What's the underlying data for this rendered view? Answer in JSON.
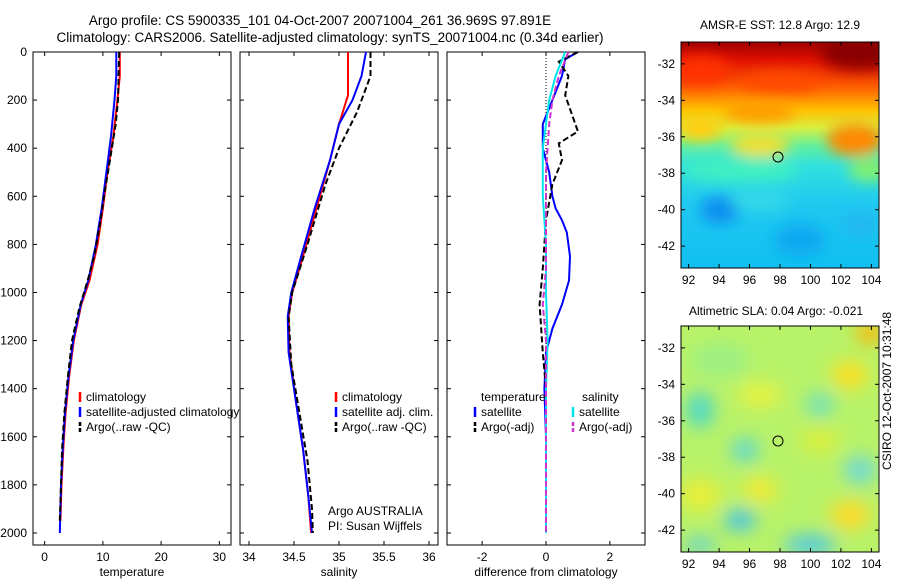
{
  "header": {
    "line1": "Argo profile: CS 5900335_101 04-Oct-2007 20071004_261 36.969S 97.891E",
    "line2": "Climatology: CARS2006. Satellite-adjusted climatology: synTS_20071004.nc (0.34d earlier)"
  },
  "colors": {
    "climatology": "#ff0000",
    "satellite": "#0000ff",
    "argo": "#000000",
    "satellite_salinity": "#00e5ee",
    "argo_salinity_adj": "#cc33cc"
  },
  "chart_data": [
    {
      "type": "line",
      "name": "temperature-profile",
      "xlabel": "temperature",
      "ylabel": "",
      "xlim": [
        -2,
        32
      ],
      "ylim": [
        2050,
        0
      ],
      "xticks": [
        0,
        10,
        20,
        30
      ],
      "yticks": [
        0,
        200,
        400,
        600,
        800,
        1000,
        1200,
        1400,
        1600,
        1800,
        2000
      ],
      "legend": [
        {
          "name": "climatology",
          "color": "#ff0000",
          "dash": "solid"
        },
        {
          "name": "satellite-adjusted climatology",
          "color": "#0000ff",
          "dash": "solid"
        },
        {
          "name": "Argo(..raw -QC)",
          "color": "#000000",
          "dash": "dashed"
        }
      ],
      "series": [
        {
          "name": "climatology",
          "color": "#ff0000",
          "dash": "solid",
          "points": [
            [
              12.9,
              0
            ],
            [
              12.9,
              100
            ],
            [
              12.5,
              200
            ],
            [
              11.8,
              350
            ],
            [
              10.8,
              500
            ],
            [
              10.0,
              650
            ],
            [
              9.1,
              800
            ],
            [
              7.7,
              950
            ],
            [
              6.3,
              1050
            ],
            [
              5.0,
              1200
            ],
            [
              4.2,
              1350
            ],
            [
              3.6,
              1500
            ],
            [
              3.2,
              1650
            ],
            [
              2.9,
              1800
            ],
            [
              2.7,
              1950
            ]
          ]
        },
        {
          "name": "satellite-adjusted climatology",
          "color": "#0000ff",
          "dash": "solid",
          "points": [
            [
              12.3,
              0
            ],
            [
              12.3,
              100
            ],
            [
              12.0,
              200
            ],
            [
              11.4,
              350
            ],
            [
              10.6,
              500
            ],
            [
              9.8,
              650
            ],
            [
              8.8,
              800
            ],
            [
              7.5,
              950
            ],
            [
              6.2,
              1050
            ],
            [
              4.9,
              1200
            ],
            [
              4.1,
              1350
            ],
            [
              3.5,
              1500
            ],
            [
              3.1,
              1650
            ],
            [
              2.8,
              1800
            ],
            [
              2.6,
              2000
            ]
          ]
        },
        {
          "name": "Argo(..raw -QC)",
          "color": "#000000",
          "dash": "dashed",
          "points": [
            [
              12.8,
              0
            ],
            [
              12.7,
              100
            ],
            [
              12.6,
              200
            ],
            [
              12.2,
              300
            ],
            [
              11.2,
              450
            ],
            [
              10.2,
              600
            ],
            [
              9.6,
              700
            ],
            [
              8.5,
              850
            ],
            [
              7.4,
              950
            ],
            [
              6.0,
              1060
            ],
            [
              4.7,
              1200
            ],
            [
              4.0,
              1350
            ],
            [
              3.4,
              1500
            ],
            [
              3.0,
              1650
            ],
            [
              2.8,
              1800
            ],
            [
              2.6,
              1950
            ]
          ]
        }
      ]
    },
    {
      "type": "line",
      "name": "salinity-profile",
      "xlabel": "salinity",
      "xlim": [
        33.9,
        36.1
      ],
      "ylim": [
        2050,
        0
      ],
      "xticks": [
        34,
        34.5,
        35,
        35.5,
        36
      ],
      "legend": [
        {
          "name": "climatology",
          "color": "#ff0000",
          "dash": "solid"
        },
        {
          "name": "satellite adj. clim.",
          "color": "#0000ff",
          "dash": "solid"
        },
        {
          "name": "Argo(..raw -QC)",
          "color": "#000000",
          "dash": "dashed"
        }
      ],
      "annotation": [
        "Argo AUSTRALIA",
        "PI: Susan Wijffels"
      ],
      "series": [
        {
          "name": "climatology",
          "color": "#ff0000",
          "dash": "solid",
          "points": [
            [
              35.1,
              0
            ],
            [
              35.1,
              100
            ],
            [
              35.1,
              180
            ],
            [
              35.0,
              300
            ],
            [
              34.9,
              450
            ],
            [
              34.75,
              650
            ],
            [
              34.6,
              850
            ],
            [
              34.48,
              1000
            ],
            [
              34.44,
              1100
            ],
            [
              34.45,
              1250
            ],
            [
              34.52,
              1450
            ],
            [
              34.6,
              1650
            ],
            [
              34.66,
              1850
            ],
            [
              34.69,
              2000
            ]
          ]
        },
        {
          "name": "satellite adj. clim.",
          "color": "#0000ff",
          "dash": "solid",
          "points": [
            [
              35.3,
              0
            ],
            [
              35.25,
              100
            ],
            [
              35.15,
              200
            ],
            [
              35.0,
              300
            ],
            [
              34.9,
              450
            ],
            [
              34.73,
              650
            ],
            [
              34.58,
              850
            ],
            [
              34.47,
              1000
            ],
            [
              34.43,
              1100
            ],
            [
              34.44,
              1250
            ],
            [
              34.52,
              1450
            ],
            [
              34.6,
              1650
            ],
            [
              34.66,
              1850
            ],
            [
              34.7,
              2000
            ]
          ]
        },
        {
          "name": "Argo(..raw -QC)",
          "color": "#000000",
          "dash": "dashed",
          "points": [
            [
              35.35,
              0
            ],
            [
              35.35,
              100
            ],
            [
              35.3,
              150
            ],
            [
              35.2,
              250
            ],
            [
              35.0,
              400
            ],
            [
              34.85,
              550
            ],
            [
              34.65,
              800
            ],
            [
              34.48,
              1000
            ],
            [
              34.44,
              1100
            ],
            [
              34.47,
              1300
            ],
            [
              34.56,
              1500
            ],
            [
              34.65,
              1700
            ],
            [
              34.7,
              1900
            ],
            [
              34.71,
              2000
            ]
          ]
        }
      ]
    },
    {
      "type": "line",
      "name": "difference-profile",
      "xlabel": "difference from climatology",
      "xlim": [
        -3.1,
        3.1
      ],
      "ylim": [
        2050,
        0
      ],
      "xticks": [
        -2,
        0,
        2
      ],
      "legend": [
        {
          "group": "temperature",
          "name": "satellite",
          "color": "#0000ff",
          "dash": "solid"
        },
        {
          "group": "temperature",
          "name": "Argo(-adj)",
          "color": "#000000",
          "dash": "dashed"
        },
        {
          "group": "salinity",
          "name": "satellite",
          "color": "#00e5ee",
          "dash": "solid"
        },
        {
          "group": "salinity",
          "name": "Argo(-adj)",
          "color": "#cc33cc",
          "dash": "dashed"
        }
      ],
      "legend_headers": [
        "temperature",
        "salinity"
      ],
      "series": [
        {
          "name": "zero",
          "color": "#000000",
          "dash": "dotted",
          "points": [
            [
              0,
              0
            ],
            [
              0,
              2000
            ]
          ]
        },
        {
          "name": "temperature satellite",
          "color": "#0000ff",
          "dash": "solid",
          "points": [
            [
              1.0,
              0
            ],
            [
              0.6,
              30
            ],
            [
              0.5,
              100
            ],
            [
              0.2,
              200
            ],
            [
              -0.1,
              300
            ],
            [
              -0.1,
              400
            ],
            [
              0.1,
              500
            ],
            [
              0.2,
              600
            ],
            [
              0.3,
              650
            ],
            [
              0.5,
              700
            ],
            [
              0.65,
              750
            ],
            [
              0.75,
              850
            ],
            [
              0.72,
              950
            ],
            [
              0.5,
              1050
            ],
            [
              0.2,
              1150
            ],
            [
              0.0,
              1250
            ],
            [
              -0.05,
              1400
            ],
            [
              0.0,
              1600
            ],
            [
              0.0,
              2000
            ]
          ]
        },
        {
          "name": "temperature Argo(-adj)",
          "color": "#000000",
          "dash": "dashed",
          "points": [
            [
              1.0,
              0
            ],
            [
              0.4,
              40
            ],
            [
              0.7,
              100
            ],
            [
              0.6,
              180
            ],
            [
              1.0,
              330
            ],
            [
              0.4,
              380
            ],
            [
              0.5,
              450
            ],
            [
              0.2,
              550
            ],
            [
              0.0,
              700
            ],
            [
              -0.1,
              900
            ],
            [
              -0.2,
              1050
            ],
            [
              -0.1,
              1250
            ],
            [
              0.0,
              1400
            ],
            [
              0.0,
              2000
            ]
          ]
        },
        {
          "name": "salinity satellite",
          "color": "#00e5ee",
          "dash": "solid",
          "points": [
            [
              0.6,
              0
            ],
            [
              0.3,
              100
            ],
            [
              0.1,
              200
            ],
            [
              -0.1,
              400
            ],
            [
              -0.1,
              600
            ],
            [
              0.0,
              800
            ],
            [
              0.0,
              1000
            ],
            [
              0.05,
              1200
            ],
            [
              0.0,
              1400
            ],
            [
              0.0,
              2000
            ]
          ]
        },
        {
          "name": "salinity Argo(-adj)",
          "color": "#cc33cc",
          "dash": "dashed",
          "points": [
            [
              0.7,
              0
            ],
            [
              0.4,
              100
            ],
            [
              0.2,
              200
            ],
            [
              0.1,
              300
            ],
            [
              0.0,
              500
            ],
            [
              0.0,
              900
            ],
            [
              -0.1,
              1050
            ],
            [
              0.0,
              1200
            ],
            [
              0.0,
              1400
            ],
            [
              0.0,
              2000
            ]
          ]
        }
      ]
    },
    {
      "type": "heatmap",
      "name": "amsre-sst-map",
      "title": "AMSR-E SST: 12.8 Argo: 12.9",
      "xlim": [
        91.5,
        104.5
      ],
      "ylim": [
        -43.2,
        -30.8
      ],
      "xticks": [
        92,
        94,
        96,
        98,
        100,
        102,
        104
      ],
      "yticks": [
        -32,
        -34,
        -36,
        -38,
        -40,
        -42
      ],
      "marker": {
        "lon": 97.891,
        "lat": -36.969
      },
      "colorscale": "jet",
      "value_description": "warm north (top) to cool south (bottom)"
    },
    {
      "type": "heatmap",
      "name": "altimetric-sla-map",
      "title": "Altimetric SLA: 0.04 Argo: -0.021",
      "xlim": [
        91.5,
        104.5
      ],
      "ylim": [
        -43.2,
        -30.8
      ],
      "xticks": [
        92,
        94,
        96,
        98,
        100,
        102,
        104
      ],
      "yticks": [
        -32,
        -34,
        -36,
        -38,
        -40,
        -42
      ],
      "marker": {
        "lon": 97.891,
        "lat": -36.969
      },
      "colorscale": "jet",
      "value_description": "mostly near zero with small cyan and yellow eddies"
    }
  ],
  "credit": "CSIRO 12-Oct-2007 10:31:48"
}
